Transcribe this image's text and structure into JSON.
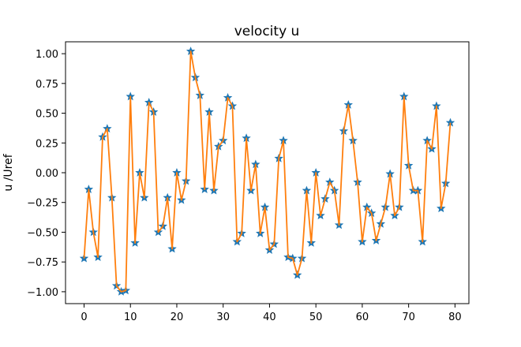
{
  "chart_data": {
    "type": "line",
    "title": "velocity u",
    "xlabel": "",
    "ylabel": "u /Uref",
    "xlim": [
      -4,
      83
    ],
    "ylim": [
      -1.1,
      1.1
    ],
    "xticks": [
      0,
      10,
      20,
      30,
      40,
      50,
      60,
      70,
      80
    ],
    "yticks": [
      -1.0,
      -0.75,
      -0.5,
      -0.25,
      0.0,
      0.25,
      0.5,
      0.75,
      1.0
    ],
    "ytick_labels": [
      "−1.00",
      "−0.75",
      "−0.50",
      "−0.25",
      "0.00",
      "0.25",
      "0.50",
      "0.75",
      "1.00"
    ],
    "grid": false,
    "legend": "none",
    "x": [
      0,
      1,
      2,
      3,
      4,
      5,
      6,
      7,
      8,
      9,
      10,
      11,
      12,
      13,
      14,
      15,
      16,
      17,
      18,
      19,
      20,
      21,
      22,
      23,
      24,
      25,
      26,
      27,
      28,
      29,
      30,
      31,
      32,
      33,
      34,
      35,
      36,
      37,
      38,
      39,
      40,
      41,
      42,
      43,
      44,
      45,
      46,
      47,
      48,
      49,
      50,
      51,
      52,
      53,
      54,
      55,
      56,
      57,
      58,
      59,
      60,
      61,
      62,
      63,
      64,
      65,
      66,
      67,
      68,
      69,
      70,
      71,
      72,
      73,
      74,
      75,
      76,
      77,
      78,
      79
    ],
    "series": [
      {
        "marker": "star",
        "color": "#1f77b4",
        "values": [
          -0.72,
          -0.14,
          -0.5,
          -0.71,
          0.3,
          0.37,
          -0.21,
          -0.95,
          -1.0,
          -0.99,
          0.64,
          -0.59,
          0.0,
          -0.21,
          0.59,
          0.51,
          -0.5,
          -0.45,
          -0.21,
          -0.64,
          0.0,
          -0.23,
          -0.07,
          1.02,
          0.8,
          0.65,
          -0.14,
          0.51,
          -0.15,
          0.22,
          0.27,
          0.63,
          0.56,
          -0.58,
          -0.51,
          0.29,
          -0.15,
          0.07,
          -0.51,
          -0.29,
          -0.65,
          -0.6,
          0.12,
          0.27,
          -0.71,
          -0.72,
          -0.86,
          -0.72,
          -0.15,
          -0.59,
          0.0,
          -0.36,
          -0.22,
          -0.08,
          -0.15,
          -0.44,
          0.35,
          0.57,
          0.27,
          -0.08,
          -0.58,
          -0.29,
          -0.34,
          -0.57,
          -0.43,
          -0.29,
          -0.01,
          -0.36,
          -0.29,
          0.64,
          0.06,
          -0.15,
          -0.15,
          -0.58,
          0.27,
          0.2,
          0.56,
          -0.3,
          -0.09,
          0.42
        ]
      },
      {
        "line": "solid",
        "color": "#ff7f0e",
        "values": [
          -0.72,
          -0.14,
          -0.5,
          -0.71,
          0.3,
          0.37,
          -0.21,
          -0.95,
          -1.0,
          -0.99,
          0.64,
          -0.59,
          0.0,
          -0.21,
          0.59,
          0.51,
          -0.5,
          -0.45,
          -0.21,
          -0.64,
          0.0,
          -0.23,
          -0.07,
          1.02,
          0.8,
          0.65,
          -0.14,
          0.51,
          -0.15,
          0.22,
          0.27,
          0.63,
          0.56,
          -0.58,
          -0.51,
          0.29,
          -0.15,
          0.07,
          -0.51,
          -0.29,
          -0.65,
          -0.6,
          0.12,
          0.27,
          -0.71,
          -0.72,
          -0.86,
          -0.72,
          -0.15,
          -0.59,
          0.0,
          -0.36,
          -0.22,
          -0.08,
          -0.15,
          -0.44,
          0.35,
          0.57,
          0.27,
          -0.08,
          -0.58,
          -0.29,
          -0.34,
          -0.57,
          -0.43,
          -0.29,
          -0.01,
          -0.36,
          -0.29,
          0.64,
          0.06,
          -0.15,
          -0.15,
          -0.58,
          0.27,
          0.2,
          0.56,
          -0.3,
          -0.09,
          0.42
        ]
      }
    ]
  }
}
